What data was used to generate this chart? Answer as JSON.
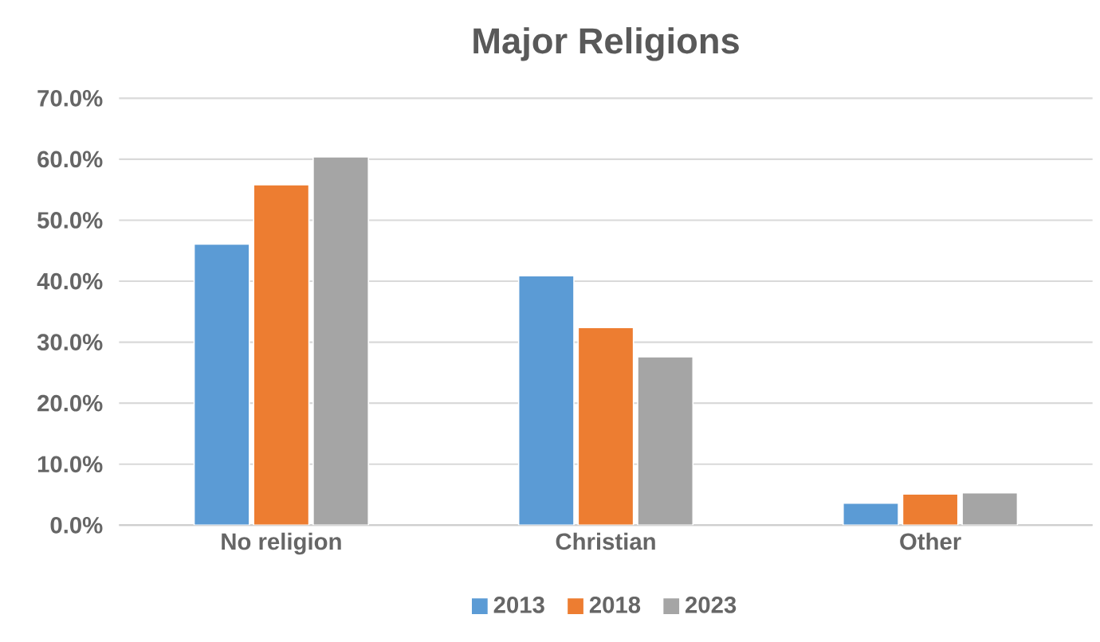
{
  "chart_data": {
    "type": "bar",
    "title": "Major Religions",
    "categories": [
      "No religion",
      "Christian",
      "Other"
    ],
    "series": [
      {
        "name": "2013",
        "color": "#5b9bd5",
        "values": [
          46.1,
          40.9,
          3.6
        ]
      },
      {
        "name": "2018",
        "color": "#ed7d31",
        "values": [
          55.8,
          32.4,
          5.1
        ]
      },
      {
        "name": "2023",
        "color": "#a5a5a5",
        "values": [
          60.4,
          27.6,
          5.3
        ]
      }
    ],
    "ylim": [
      0,
      70
    ],
    "yticks": [
      {
        "value": 0,
        "label": "0.0%"
      },
      {
        "value": 10,
        "label": "10.0%"
      },
      {
        "value": 20,
        "label": "20.0%"
      },
      {
        "value": 30,
        "label": "30.0%"
      },
      {
        "value": 40,
        "label": "40.0%"
      },
      {
        "value": 50,
        "label": "50.0%"
      },
      {
        "value": 60,
        "label": "60.0%"
      },
      {
        "value": 70,
        "label": "70.0%"
      }
    ],
    "grid": "y",
    "legend": "bottom"
  }
}
